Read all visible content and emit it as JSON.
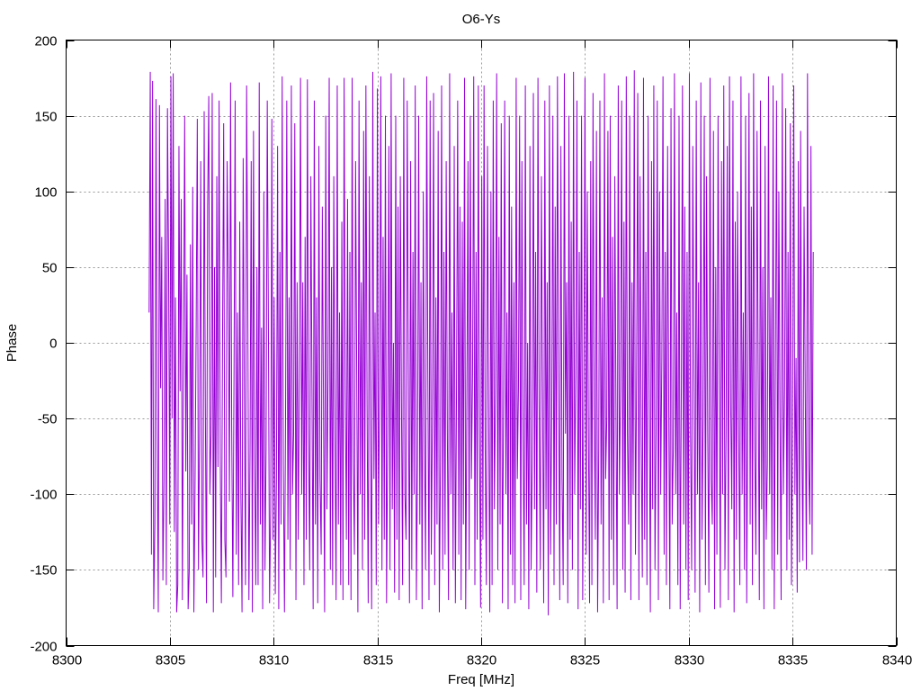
{
  "chart_data": {
    "type": "line",
    "title": "O6-Ys",
    "xlabel": "Freq [MHz]",
    "ylabel": "Phase",
    "xlim": [
      8300,
      8340
    ],
    "ylim": [
      -200,
      200
    ],
    "xticks": [
      8300,
      8305,
      8310,
      8315,
      8320,
      8325,
      8330,
      8335,
      8340
    ],
    "yticks": [
      -200,
      -150,
      -100,
      -50,
      0,
      50,
      100,
      150,
      200
    ],
    "xtick_labels": [
      "8300",
      "8305",
      "8310",
      "8315",
      "8320",
      "8325",
      "8330",
      "8335",
      "8340"
    ],
    "ytick_labels": [
      "-200",
      "-150",
      "-100",
      "-50",
      "0",
      "50",
      "100",
      "150",
      "200"
    ],
    "grid": true,
    "series": [
      {
        "color": "#9400d3",
        "x_start": 8304.0,
        "x_end": 8336.0,
        "values": [
          20,
          179,
          -140,
          173,
          -176,
          -120,
          161,
          -60,
          -178,
          157,
          -30,
          70,
          -157,
          -91,
          95,
          -160,
          155,
          48,
          -120,
          176,
          -50,
          178,
          -125,
          30,
          -178,
          -160,
          130,
          -32,
          95,
          -170,
          -10,
          150,
          -85,
          45,
          -176,
          -150,
          65,
          -120,
          103,
          -178,
          -100,
          10,
          148,
          -150,
          -60,
          120,
          -130,
          -155,
          153,
          -40,
          -172,
          90,
          163,
          -100,
          -60,
          165,
          -178,
          50,
          -155,
          110,
          -82,
          160,
          -75,
          -172,
          0,
          145,
          -130,
          -155,
          120,
          40,
          -105,
          172,
          -55,
          -168,
          -20,
          160,
          -140,
          20,
          -160,
          80,
          -100,
          -178,
          122,
          -30,
          -160,
          170,
          30,
          -170,
          -70,
          120,
          -178,
          140,
          -80,
          -160,
          50,
          -160,
          172,
          -120,
          10,
          -176,
          100,
          -150,
          -70,
          160,
          10,
          -172,
          -110,
          148,
          -130,
          30,
          -166,
          -90,
          130,
          -176,
          60,
          -120,
          176,
          -80,
          -178,
          -40,
          160,
          -130,
          30,
          -150,
          170,
          -100,
          -60,
          145,
          -170,
          40,
          -130,
          -20,
          175,
          -100,
          40,
          -160,
          70,
          -130,
          174,
          -60,
          -150,
          110,
          -30,
          -176,
          160,
          -120,
          30,
          -172,
          130,
          -90,
          -140,
          90,
          -40,
          -178,
          150,
          -110,
          -20,
          175,
          -150,
          50,
          -160,
          110,
          -60,
          -170,
          170,
          -120,
          20,
          -160,
          80,
          -170,
          175,
          -30,
          -130,
          95,
          -160,
          60,
          -170,
          175,
          -80,
          -140,
          120,
          -20,
          -178,
          160,
          -100,
          40,
          -150,
          140,
          -130,
          170,
          -40,
          -172,
          110,
          -70,
          -176,
          179,
          -90,
          20,
          -160,
          168,
          -120,
          -30,
          176,
          -150,
          70,
          -130,
          150,
          -172,
          -60,
          130,
          -150,
          178,
          -110,
          0,
          -165,
          150,
          -130,
          90,
          -170,
          110,
          -40,
          -160,
          175,
          -100,
          -130,
          160,
          -20,
          -172,
          120,
          -150,
          60,
          -100,
          170,
          -170,
          -80,
          150,
          -120,
          40,
          -176,
          100,
          -60,
          -150,
          176,
          -20,
          -170,
          160,
          -140,
          -50,
          165,
          -160,
          30,
          -120,
          140,
          -178,
          -80,
          170,
          -150,
          60,
          -140,
          120,
          -60,
          -170,
          178,
          -100,
          20,
          -150,
          130,
          -172,
          -30,
          160,
          -140,
          90,
          -170,
          80,
          -120,
          175,
          -176,
          -40,
          120,
          -150,
          150,
          -90,
          -20,
          176,
          -160,
          60,
          -130,
          170,
          -60,
          -175,
          110,
          -130,
          170,
          -70,
          -160,
          130,
          -40,
          -178,
          100,
          -160,
          160,
          -110,
          -30,
          178,
          -150,
          70,
          -120,
          145,
          -172,
          -40,
          160,
          -100,
          20,
          -176,
          150,
          -140,
          90,
          -160,
          40,
          -172,
          175,
          -90,
          -30,
          150,
          -170,
          120,
          -60,
          -160,
          170,
          -120,
          0,
          -176,
          130,
          -150,
          -80,
          165,
          -110,
          60,
          -165,
          175,
          -40,
          -150,
          110,
          -30,
          -172,
          160,
          -110,
          40,
          -180,
          170,
          -140,
          -50,
          150,
          -160,
          90,
          -120,
          176,
          -20,
          -170,
          130,
          -90,
          -160,
          178,
          -60,
          40,
          -172,
          150,
          -130,
          80,
          -150,
          179,
          -100,
          -20,
          160,
          -176,
          60,
          -110,
          150,
          -170,
          -30,
          175,
          -140,
          100,
          -60,
          -172,
          120,
          -160,
          165,
          -40,
          -130,
          140,
          -178,
          -70,
          160,
          -120,
          30,
          -172,
          178,
          -90,
          -50,
          140,
          -170,
          150,
          -130,
          70,
          -160,
          110,
          -40,
          -176,
          170,
          -100,
          -30,
          160,
          -150,
          80,
          -165,
          176,
          -60,
          -120,
          150,
          -170,
          40,
          -100,
          180,
          -140,
          -20,
          165,
          -170,
          110,
          -60,
          -155,
          175,
          -130,
          60,
          -160,
          150,
          -30,
          -178,
          120,
          -110,
          170,
          -150,
          -60,
          160,
          -170,
          100,
          -100,
          -10,
          176,
          -140,
          60,
          -160,
          130,
          -40,
          -176,
          155,
          -120,
          -70,
          178,
          -100,
          20,
          -160,
          150,
          -176,
          -30,
          170,
          -120,
          90,
          -150,
          60,
          -170,
          178,
          -60,
          -150,
          130,
          -20,
          -165,
          160,
          -100,
          40,
          -178,
          172,
          -130,
          -50,
          150,
          -160,
          110,
          -60,
          -165,
          175,
          -90,
          -120,
          140,
          -176,
          50,
          -140,
          150,
          -20,
          -175,
          120,
          -100,
          170,
          -150,
          -60,
          130,
          -170,
          176,
          -40,
          -110,
          160,
          -178,
          80,
          -130,
          100,
          -60,
          -160,
          176,
          -100,
          20,
          -150,
          150,
          -172,
          -30,
          165,
          -120,
          90,
          -160,
          178,
          -70,
          -140,
          140,
          -20,
          -170,
          160,
          -110,
          50,
          -176,
          130,
          -130,
          -80,
          176,
          -100,
          30,
          -150,
          170,
          -176,
          -20,
          160,
          -140,
          100,
          -50,
          -170,
          178,
          -100,
          -30,
          155,
          -150,
          60,
          -130,
          145,
          -160,
          -60,
          170,
          -100,
          -10,
          -165,
          120,
          -145,
          140,
          -60,
          -144,
          90,
          -30,
          -150,
          178,
          -80,
          -120,
          130,
          -140,
          60
        ]
      }
    ]
  }
}
